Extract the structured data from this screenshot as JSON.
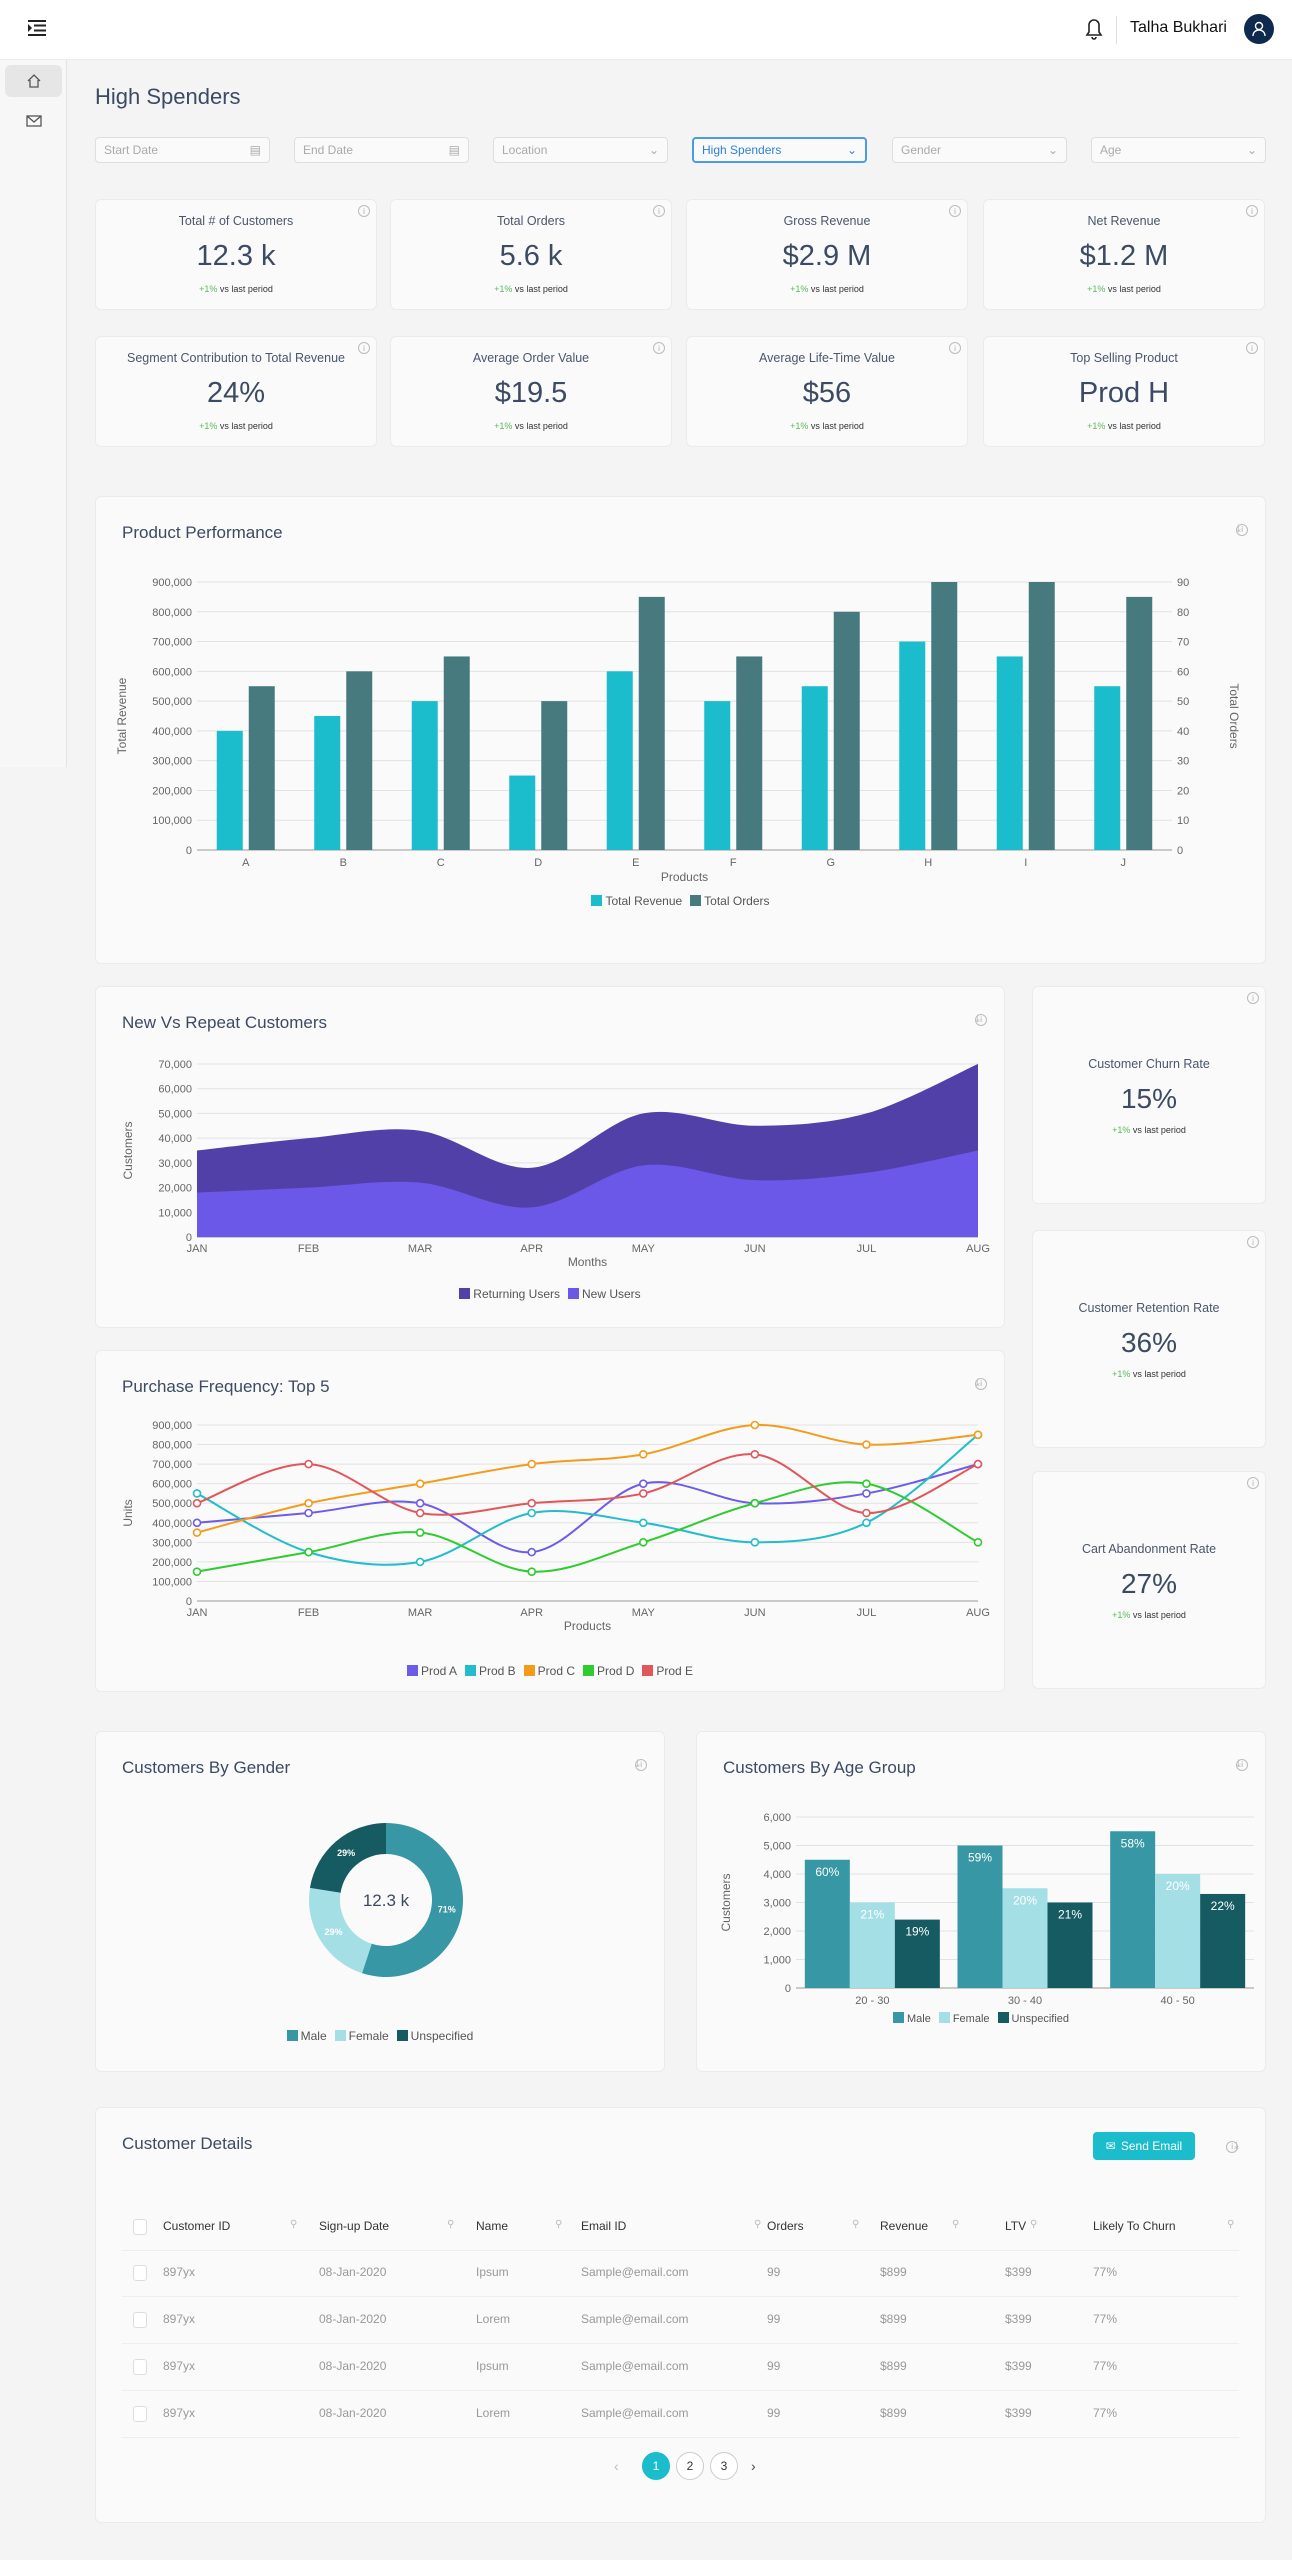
{
  "header": {
    "user_name": "Talha Bukhari",
    "icons": {
      "menu": "menu-collapse-icon",
      "bell": "bell-icon",
      "avatar": "user-icon"
    }
  },
  "sidebar": {
    "items": [
      {
        "icon": "home-icon",
        "active": true
      },
      {
        "icon": "mail-icon",
        "active": false
      }
    ]
  },
  "page_title": "High Spenders",
  "filters": [
    {
      "placeholder": "Start Date",
      "icon": "calendar-icon"
    },
    {
      "placeholder": "End Date",
      "icon": "calendar-icon"
    },
    {
      "placeholder": "Location",
      "icon": "chevron-down-icon"
    },
    {
      "value": "High Spenders",
      "icon": "chevron-down-icon"
    },
    {
      "placeholder": "Gender",
      "icon": "chevron-down-icon"
    },
    {
      "placeholder": "Age",
      "icon": "chevron-down-icon"
    }
  ],
  "kpis": [
    {
      "title": "Total # of Customers",
      "value": "12.3 k",
      "change": "+1%",
      "suffix": "vs last period"
    },
    {
      "title": "Total Orders",
      "value": "5.6 k",
      "change": "+1%",
      "suffix": "vs last period"
    },
    {
      "title": "Gross Revenue",
      "value": "$2.9 M",
      "change": "+1%",
      "suffix": "vs last period"
    },
    {
      "title": "Net Revenue",
      "value": "$1.2 M",
      "change": "+1%",
      "suffix": "vs last period"
    },
    {
      "title": "Segment Contribution to Total Revenue",
      "value": "24%",
      "change": "+1%",
      "suffix": "vs last period"
    },
    {
      "title": "Average Order Value",
      "value": "$19.5",
      "change": "+1%",
      "suffix": "vs last period"
    },
    {
      "title": "Average Life-Time Value",
      "value": "$56",
      "change": "+1%",
      "suffix": "vs last period"
    },
    {
      "title": "Top Selling Product",
      "value": "Prod H",
      "change": "+1%",
      "suffix": "vs last period"
    }
  ],
  "side_kpis": [
    {
      "title": "Customer Churn Rate",
      "value": "15%",
      "change": "+1%",
      "suffix": "vs last period"
    },
    {
      "title": "Customer Retention Rate",
      "value": "36%",
      "change": "+1%",
      "suffix": "vs last period"
    },
    {
      "title": "Cart Abandonment Rate",
      "value": "27%",
      "change": "+1%",
      "suffix": "vs last period"
    }
  ],
  "chart_data": [
    {
      "type": "bar",
      "title": "Product Performance",
      "categories": [
        "A",
        "B",
        "C",
        "D",
        "E",
        "F",
        "G",
        "H",
        "I",
        "J"
      ],
      "series": [
        {
          "name": "Total Revenue",
          "axis": "left",
          "color": "#1bbccb",
          "values": [
            400000,
            450000,
            500000,
            250000,
            600000,
            500000,
            550000,
            700000,
            650000,
            550000
          ]
        },
        {
          "name": "Total Orders",
          "axis": "right",
          "color": "#477a7e",
          "values": [
            55,
            60,
            65,
            50,
            85,
            65,
            80,
            90,
            90,
            85
          ]
        }
      ],
      "xlabel": "Products",
      "ylabel": "Total Revenue",
      "y2label": "Total Orders",
      "ylim": [
        0,
        900000
      ],
      "ystep": 100000,
      "y2lim": [
        0,
        90
      ],
      "y2step": 10,
      "grid": true,
      "legend": "bottom"
    },
    {
      "type": "area",
      "stacked": true,
      "title": "New Vs Repeat Customers",
      "categories": [
        "JAN",
        "FEB",
        "MAR",
        "APR",
        "MAY",
        "JUN",
        "JUL",
        "AUG"
      ],
      "series": [
        {
          "name": "Returning Users",
          "color": "#5040a8",
          "values": [
            17000,
            20000,
            21000,
            16000,
            21000,
            22000,
            24000,
            35000
          ]
        },
        {
          "name": "New Users",
          "color": "#6b57e8",
          "values": [
            18000,
            20000,
            22000,
            12000,
            29000,
            23000,
            26000,
            35000
          ]
        }
      ],
      "xlabel": "Months",
      "ylabel": "Customers",
      "ylim": [
        0,
        70000
      ],
      "ystep": 10000,
      "grid": true,
      "legend": "bottom"
    },
    {
      "type": "line",
      "title": "Purchase Frequency: Top 5",
      "categories": [
        "JAN",
        "FEB",
        "MAR",
        "APR",
        "MAY",
        "JUN",
        "JUL",
        "AUG"
      ],
      "series": [
        {
          "name": "Prod A",
          "color": "#6c5ce7",
          "values": [
            400000,
            450000,
            500000,
            250000,
            600000,
            500000,
            550000,
            700000
          ]
        },
        {
          "name": "Prod B",
          "color": "#22bccc",
          "values": [
            550000,
            250000,
            200000,
            450000,
            400000,
            300000,
            400000,
            850000
          ]
        },
        {
          "name": "Prod C",
          "color": "#f39c1c",
          "values": [
            350000,
            500000,
            600000,
            700000,
            750000,
            900000,
            800000,
            850000
          ]
        },
        {
          "name": "Prod D",
          "color": "#2ecc2e",
          "values": [
            150000,
            250000,
            350000,
            150000,
            300000,
            500000,
            600000,
            300000
          ]
        },
        {
          "name": "Prod E",
          "color": "#e0575b",
          "values": [
            500000,
            700000,
            450000,
            500000,
            550000,
            750000,
            450000,
            700000
          ]
        }
      ],
      "xlabel": "Products",
      "ylabel": "Units",
      "ylim": [
        0,
        900000
      ],
      "ystep": 100000,
      "grid": true,
      "legend": "bottom"
    },
    {
      "type": "pie",
      "donut": true,
      "title": "Customers By Gender",
      "center_label": "12.3 k",
      "slices": [
        {
          "name": "Male",
          "value": 71,
          "label": "71%",
          "color": "#3797a4"
        },
        {
          "name": "Female",
          "value": 29,
          "label": "29%",
          "color": "#a5dfe6"
        },
        {
          "name": "Unspecified",
          "value": 29,
          "label": "29%",
          "color": "#165a62"
        }
      ],
      "legend": "bottom"
    },
    {
      "type": "bar",
      "title": "Customers By Age Group",
      "categories": [
        "20 - 30",
        "30 - 40",
        "40 - 50"
      ],
      "series": [
        {
          "name": "Male",
          "color": "#3797a4",
          "values": [
            4500,
            5000,
            5500
          ],
          "labels": [
            "60%",
            "59%",
            "58%"
          ]
        },
        {
          "name": "Female",
          "color": "#a5dfe6",
          "values": [
            3000,
            3500,
            4000
          ],
          "labels": [
            "21%",
            "20%",
            "20%"
          ]
        },
        {
          "name": "Unspecified",
          "color": "#165a62",
          "values": [
            2400,
            3000,
            3300
          ],
          "labels": [
            "19%",
            "21%",
            "22%"
          ]
        }
      ],
      "ylabel": "Customers",
      "ylim": [
        0,
        6000
      ],
      "ystep": 1000,
      "grid": true,
      "legend": "bottom"
    }
  ],
  "table": {
    "title": "Customer Details",
    "send_email": "Send Email",
    "columns": [
      "Customer ID",
      "Sign-up Date",
      "Name",
      "Email ID",
      "Orders",
      "Revenue",
      "LTV",
      "Likely To Churn"
    ],
    "rows": [
      [
        "897yx",
        "08-Jan-2020",
        "Ipsum",
        "Sample@email.com",
        "99",
        "$899",
        "$399",
        "77%"
      ],
      [
        "897yx",
        "08-Jan-2020",
        "Lorem",
        "Sample@email.com",
        "99",
        "$899",
        "$399",
        "77%"
      ],
      [
        "897yx",
        "08-Jan-2020",
        "Ipsum",
        "Sample@email.com",
        "99",
        "$899",
        "$399",
        "77%"
      ],
      [
        "897yx",
        "08-Jan-2020",
        "Lorem",
        "Sample@email.com",
        "99",
        "$899",
        "$399",
        "77%"
      ]
    ],
    "pages": [
      "1",
      "2",
      "3"
    ],
    "current_page": "1"
  }
}
